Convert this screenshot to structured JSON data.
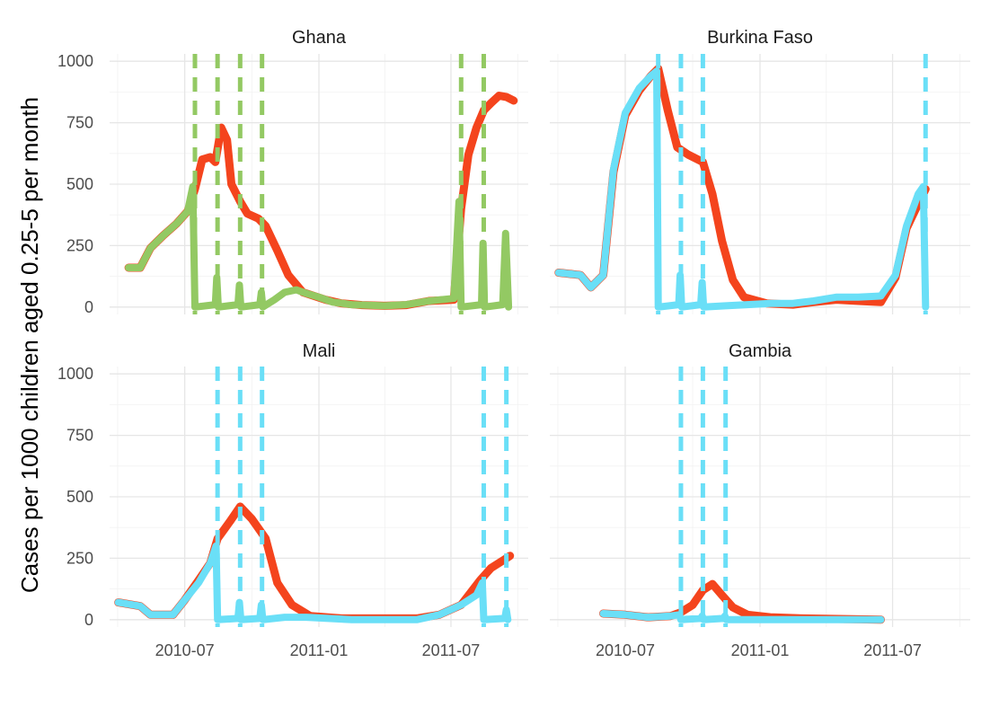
{
  "chart_data": {
    "type": "line",
    "ylabel": "Cases per 1000 children aged 0.25-5 per month",
    "xlabel": "",
    "y_ticks": [
      0,
      250,
      500,
      750,
      1000
    ],
    "y_tick_labels": [
      "0",
      "250",
      "500",
      "750",
      "1000"
    ],
    "x_ticks": [
      "2010-07-01",
      "2011-01-01",
      "2011-07-01"
    ],
    "x_tick_labels": [
      "2010-07",
      "2011-01",
      "2011-07"
    ],
    "xlim": [
      "2010-03-20",
      "2011-10-15"
    ],
    "ylim": [
      -30,
      1030
    ],
    "grid": true,
    "layout": "2x2 facets, shared axes",
    "colors": {
      "baseline": "#F4441D",
      "ghana_intervention": "#93C963",
      "other_intervention": "#6ADFF7"
    },
    "panels": [
      {
        "title": "Ghana",
        "intervention_color": "#93C963",
        "vlines": [
          "2010-07-15",
          "2010-08-15",
          "2010-09-15",
          "2010-10-15",
          "2011-07-15",
          "2011-08-15"
        ],
        "series": [
          {
            "role": "baseline",
            "color": "#F4441D",
            "points": [
              [
                "2010-04-15",
                160
              ],
              [
                "2010-05-01",
                160
              ],
              [
                "2010-05-15",
                240
              ],
              [
                "2010-06-01",
                290
              ],
              [
                "2010-06-20",
                340
              ],
              [
                "2010-07-05",
                390
              ],
              [
                "2010-07-15",
                480
              ],
              [
                "2010-07-25",
                600
              ],
              [
                "2010-08-05",
                610
              ],
              [
                "2010-08-12",
                590
              ],
              [
                "2010-08-20",
                730
              ],
              [
                "2010-08-28",
                680
              ],
              [
                "2010-09-03",
                500
              ],
              [
                "2010-09-15",
                430
              ],
              [
                "2010-09-25",
                380
              ],
              [
                "2010-10-10",
                360
              ],
              [
                "2010-10-20",
                330
              ],
              [
                "2010-11-05",
                230
              ],
              [
                "2010-11-20",
                130
              ],
              [
                "2010-12-10",
                60
              ],
              [
                "2011-01-10",
                30
              ],
              [
                "2011-02-01",
                15
              ],
              [
                "2011-03-01",
                8
              ],
              [
                "2011-04-01",
                5
              ],
              [
                "2011-05-01",
                8
              ],
              [
                "2011-06-01",
                25
              ],
              [
                "2011-07-05",
                30
              ],
              [
                "2011-07-15",
                400
              ],
              [
                "2011-07-25",
                620
              ],
              [
                "2011-08-05",
                730
              ],
              [
                "2011-08-15",
                800
              ],
              [
                "2011-08-25",
                830
              ],
              [
                "2011-09-05",
                860
              ],
              [
                "2011-09-15",
                855
              ],
              [
                "2011-09-25",
                840
              ]
            ]
          },
          {
            "role": "intervention",
            "color": "#93C963",
            "points": [
              [
                "2010-04-15",
                160
              ],
              [
                "2010-05-01",
                160
              ],
              [
                "2010-05-15",
                240
              ],
              [
                "2010-06-01",
                290
              ],
              [
                "2010-06-20",
                340
              ],
              [
                "2010-07-05",
                390
              ],
              [
                "2010-07-12",
                490
              ],
              [
                "2010-07-15",
                0
              ],
              [
                "2010-08-12",
                10
              ],
              [
                "2010-08-14",
                120
              ],
              [
                "2010-08-16",
                0
              ],
              [
                "2010-09-12",
                10
              ],
              [
                "2010-09-14",
                90
              ],
              [
                "2010-09-16",
                0
              ],
              [
                "2010-10-12",
                10
              ],
              [
                "2010-10-14",
                60
              ],
              [
                "2010-10-16",
                0
              ],
              [
                "2010-11-01",
                30
              ],
              [
                "2010-11-15",
                60
              ],
              [
                "2010-12-01",
                70
              ],
              [
                "2010-12-15",
                55
              ],
              [
                "2011-01-01",
                40
              ],
              [
                "2011-01-20",
                20
              ],
              [
                "2011-02-15",
                10
              ],
              [
                "2011-04-01",
                5
              ],
              [
                "2011-05-01",
                10
              ],
              [
                "2011-06-01",
                25
              ],
              [
                "2011-07-05",
                35
              ],
              [
                "2011-07-12",
                430
              ],
              [
                "2011-07-15",
                0
              ],
              [
                "2011-08-12",
                10
              ],
              [
                "2011-08-14",
                260
              ],
              [
                "2011-08-16",
                0
              ],
              [
                "2011-09-10",
                10
              ],
              [
                "2011-09-14",
                300
              ],
              [
                "2011-09-18",
                0
              ]
            ]
          }
        ]
      },
      {
        "title": "Burkina Faso",
        "intervention_color": "#6ADFF7",
        "vlines": [
          "2010-08-15",
          "2010-09-15",
          "2010-10-15",
          "2011-08-15"
        ],
        "series": [
          {
            "role": "baseline",
            "color": "#F4441D",
            "points": [
              [
                "2010-04-01",
                140
              ],
              [
                "2010-05-01",
                130
              ],
              [
                "2010-05-15",
                80
              ],
              [
                "2010-06-01",
                130
              ],
              [
                "2010-06-15",
                550
              ],
              [
                "2010-07-01",
                780
              ],
              [
                "2010-07-20",
                880
              ],
              [
                "2010-08-05",
                940
              ],
              [
                "2010-08-15",
                970
              ],
              [
                "2010-08-28",
                800
              ],
              [
                "2010-09-10",
                650
              ],
              [
                "2010-09-25",
                620
              ],
              [
                "2010-10-15",
                590
              ],
              [
                "2010-10-28",
                460
              ],
              [
                "2010-11-10",
                270
              ],
              [
                "2010-11-25",
                110
              ],
              [
                "2010-12-10",
                40
              ],
              [
                "2011-01-10",
                15
              ],
              [
                "2011-02-15",
                10
              ],
              [
                "2011-03-15",
                20
              ],
              [
                "2011-04-15",
                30
              ],
              [
                "2011-05-15",
                25
              ],
              [
                "2011-06-15",
                20
              ],
              [
                "2011-07-05",
                120
              ],
              [
                "2011-07-20",
                320
              ],
              [
                "2011-08-05",
                420
              ],
              [
                "2011-08-15",
                480
              ]
            ]
          },
          {
            "role": "intervention",
            "color": "#6ADFF7",
            "points": [
              [
                "2010-04-01",
                140
              ],
              [
                "2010-05-01",
                130
              ],
              [
                "2010-05-15",
                80
              ],
              [
                "2010-06-01",
                130
              ],
              [
                "2010-06-15",
                560
              ],
              [
                "2010-07-01",
                790
              ],
              [
                "2010-07-20",
                890
              ],
              [
                "2010-08-05",
                940
              ],
              [
                "2010-08-13",
                960
              ],
              [
                "2010-08-15",
                0
              ],
              [
                "2010-09-12",
                10
              ],
              [
                "2010-09-14",
                130
              ],
              [
                "2010-09-16",
                0
              ],
              [
                "2010-10-12",
                10
              ],
              [
                "2010-10-14",
                100
              ],
              [
                "2010-10-16",
                0
              ],
              [
                "2010-11-15",
                5
              ],
              [
                "2010-12-15",
                10
              ],
              [
                "2011-01-15",
                15
              ],
              [
                "2011-02-15",
                15
              ],
              [
                "2011-03-15",
                25
              ],
              [
                "2011-04-15",
                40
              ],
              [
                "2011-05-15",
                40
              ],
              [
                "2011-06-15",
                45
              ],
              [
                "2011-07-05",
                130
              ],
              [
                "2011-07-20",
                330
              ],
              [
                "2011-08-05",
                460
              ],
              [
                "2011-08-12",
                490
              ],
              [
                "2011-08-15",
                0
              ]
            ]
          }
        ]
      },
      {
        "title": "Mali",
        "intervention_color": "#6ADFF7",
        "vlines": [
          "2010-08-15",
          "2010-09-15",
          "2010-10-15",
          "2011-08-15",
          "2011-09-15"
        ],
        "series": [
          {
            "role": "baseline",
            "color": "#F4441D",
            "points": [
              [
                "2010-04-01",
                70
              ],
              [
                "2010-05-01",
                55
              ],
              [
                "2010-05-15",
                20
              ],
              [
                "2010-06-15",
                20
              ],
              [
                "2010-07-01",
                80
              ],
              [
                "2010-07-20",
                160
              ],
              [
                "2010-08-05",
                230
              ],
              [
                "2010-08-15",
                330
              ],
              [
                "2010-09-01",
                400
              ],
              [
                "2010-09-15",
                460
              ],
              [
                "2010-10-01",
                410
              ],
              [
                "2010-10-20",
                330
              ],
              [
                "2010-11-05",
                150
              ],
              [
                "2010-11-25",
                60
              ],
              [
                "2010-12-20",
                15
              ],
              [
                "2011-02-01",
                5
              ],
              [
                "2011-05-15",
                5
              ],
              [
                "2011-06-15",
                20
              ],
              [
                "2011-07-15",
                60
              ],
              [
                "2011-08-10",
                160
              ],
              [
                "2011-08-25",
                210
              ],
              [
                "2011-09-10",
                240
              ],
              [
                "2011-09-20",
                260
              ]
            ]
          },
          {
            "role": "intervention",
            "color": "#6ADFF7",
            "points": [
              [
                "2010-04-01",
                70
              ],
              [
                "2010-05-01",
                55
              ],
              [
                "2010-05-15",
                20
              ],
              [
                "2010-06-15",
                20
              ],
              [
                "2010-07-01",
                80
              ],
              [
                "2010-07-20",
                150
              ],
              [
                "2010-08-05",
                230
              ],
              [
                "2010-08-13",
                300
              ],
              [
                "2010-08-15",
                0
              ],
              [
                "2010-09-12",
                5
              ],
              [
                "2010-09-14",
                70
              ],
              [
                "2010-09-16",
                0
              ],
              [
                "2010-10-12",
                5
              ],
              [
                "2010-10-14",
                60
              ],
              [
                "2010-10-16",
                0
              ],
              [
                "2010-11-15",
                10
              ],
              [
                "2010-12-15",
                10
              ],
              [
                "2011-02-15",
                0
              ],
              [
                "2011-05-15",
                0
              ],
              [
                "2011-06-15",
                20
              ],
              [
                "2011-07-15",
                60
              ],
              [
                "2011-08-05",
                100
              ],
              [
                "2011-08-13",
                150
              ],
              [
                "2011-08-15",
                0
              ],
              [
                "2011-09-13",
                5
              ],
              [
                "2011-09-15",
                40
              ],
              [
                "2011-09-17",
                0
              ]
            ]
          }
        ]
      },
      {
        "title": "Gambia",
        "intervention_color": "#6ADFF7",
        "vlines": [
          "2010-09-15",
          "2010-10-15",
          "2010-11-15"
        ],
        "series": [
          {
            "role": "baseline",
            "color": "#F4441D",
            "points": [
              [
                "2010-06-01",
                25
              ],
              [
                "2010-07-01",
                20
              ],
              [
                "2010-08-01",
                10
              ],
              [
                "2010-09-01",
                15
              ],
              [
                "2010-09-15",
                30
              ],
              [
                "2010-10-01",
                60
              ],
              [
                "2010-10-15",
                120
              ],
              [
                "2010-10-28",
                145
              ],
              [
                "2010-11-10",
                100
              ],
              [
                "2010-11-25",
                50
              ],
              [
                "2010-12-15",
                20
              ],
              [
                "2011-01-15",
                10
              ],
              [
                "2011-03-01",
                5
              ],
              [
                "2011-06-15",
                0
              ]
            ]
          },
          {
            "role": "intervention",
            "color": "#6ADFF7",
            "points": [
              [
                "2010-06-01",
                25
              ],
              [
                "2010-07-01",
                20
              ],
              [
                "2010-08-01",
                10
              ],
              [
                "2010-09-01",
                15
              ],
              [
                "2010-09-13",
                20
              ],
              [
                "2010-09-15",
                0
              ],
              [
                "2010-10-12",
                5
              ],
              [
                "2010-10-14",
                15
              ],
              [
                "2010-10-16",
                0
              ],
              [
                "2010-11-12",
                5
              ],
              [
                "2010-11-14",
                15
              ],
              [
                "2010-11-16",
                0
              ],
              [
                "2010-12-15",
                0
              ],
              [
                "2011-06-15",
                0
              ]
            ]
          }
        ]
      }
    ]
  }
}
